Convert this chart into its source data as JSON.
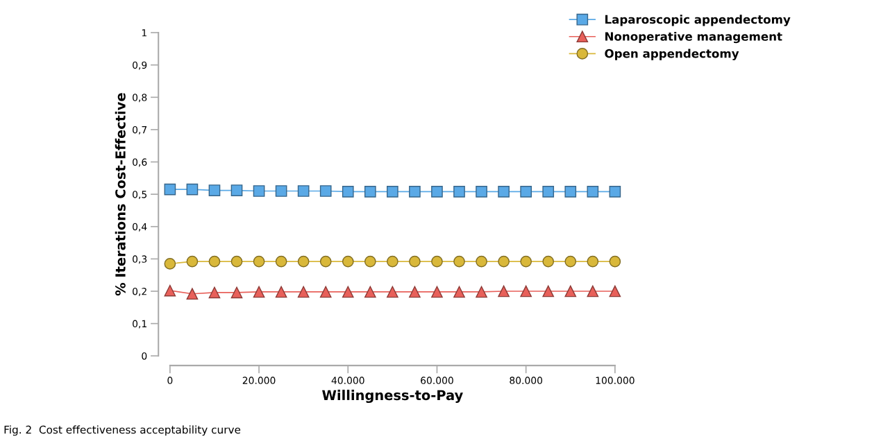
{
  "chart_data": {
    "type": "line",
    "xlabel": "Willingness-to-Pay",
    "ylabel": "% Iterations Cost-Effective",
    "annotations": [
      "Fig. 2  Cost effectiveness acceptability curve"
    ],
    "x": [
      0,
      5000,
      10000,
      15000,
      20000,
      25000,
      30000,
      35000,
      40000,
      45000,
      50000,
      55000,
      60000,
      65000,
      70000,
      75000,
      80000,
      85000,
      90000,
      95000,
      100000
    ],
    "series": [
      {
        "name": "Laparoscopic appendectomy",
        "color": "#5aa9e6",
        "marker": "square",
        "values": [
          0.515,
          0.515,
          0.512,
          0.512,
          0.51,
          0.51,
          0.51,
          0.51,
          0.508,
          0.508,
          0.508,
          0.508,
          0.508,
          0.508,
          0.508,
          0.508,
          0.508,
          0.508,
          0.508,
          0.508,
          0.508
        ]
      },
      {
        "name": "Nonoperative management",
        "color": "#e8605a",
        "marker": "triangle",
        "values": [
          0.202,
          0.192,
          0.196,
          0.196,
          0.198,
          0.198,
          0.198,
          0.198,
          0.198,
          0.198,
          0.198,
          0.198,
          0.198,
          0.198,
          0.198,
          0.2,
          0.2,
          0.2,
          0.2,
          0.2,
          0.2
        ]
      },
      {
        "name": "Open appendectomy",
        "color": "#d9b83a",
        "marker": "circle",
        "values": [
          0.285,
          0.292,
          0.292,
          0.292,
          0.292,
          0.292,
          0.292,
          0.292,
          0.292,
          0.292,
          0.292,
          0.292,
          0.292,
          0.292,
          0.292,
          0.292,
          0.292,
          0.292,
          0.292,
          0.292,
          0.292
        ]
      }
    ],
    "xlim": [
      0,
      100000
    ],
    "ylim": [
      0,
      1
    ],
    "xticks": [
      0,
      {
        "value": 20000,
        "label": "20.000"
      },
      {
        "value": 40000,
        "label": "40.000"
      },
      {
        "value": 60000,
        "label": "60.000"
      },
      {
        "value": 80000,
        "label": "80.000"
      },
      {
        "value": 100000,
        "label": "100.000"
      }
    ],
    "yticks": [
      0,
      {
        "value": 0.1,
        "label": "0,1"
      },
      {
        "value": 0.2,
        "label": "0,2"
      },
      {
        "value": 0.3,
        "label": "0,3"
      },
      {
        "value": 0.4,
        "label": "0,4"
      },
      {
        "value": 0.5,
        "label": "0,5"
      },
      {
        "value": 0.6,
        "label": "0,6"
      },
      {
        "value": 0.7,
        "label": "0,7"
      },
      {
        "value": 0.8,
        "label": "0,8"
      },
      {
        "value": 0.9,
        "label": "0,9"
      },
      1
    ],
    "grid": false,
    "legend": "top right",
    "line_style": "solid"
  }
}
